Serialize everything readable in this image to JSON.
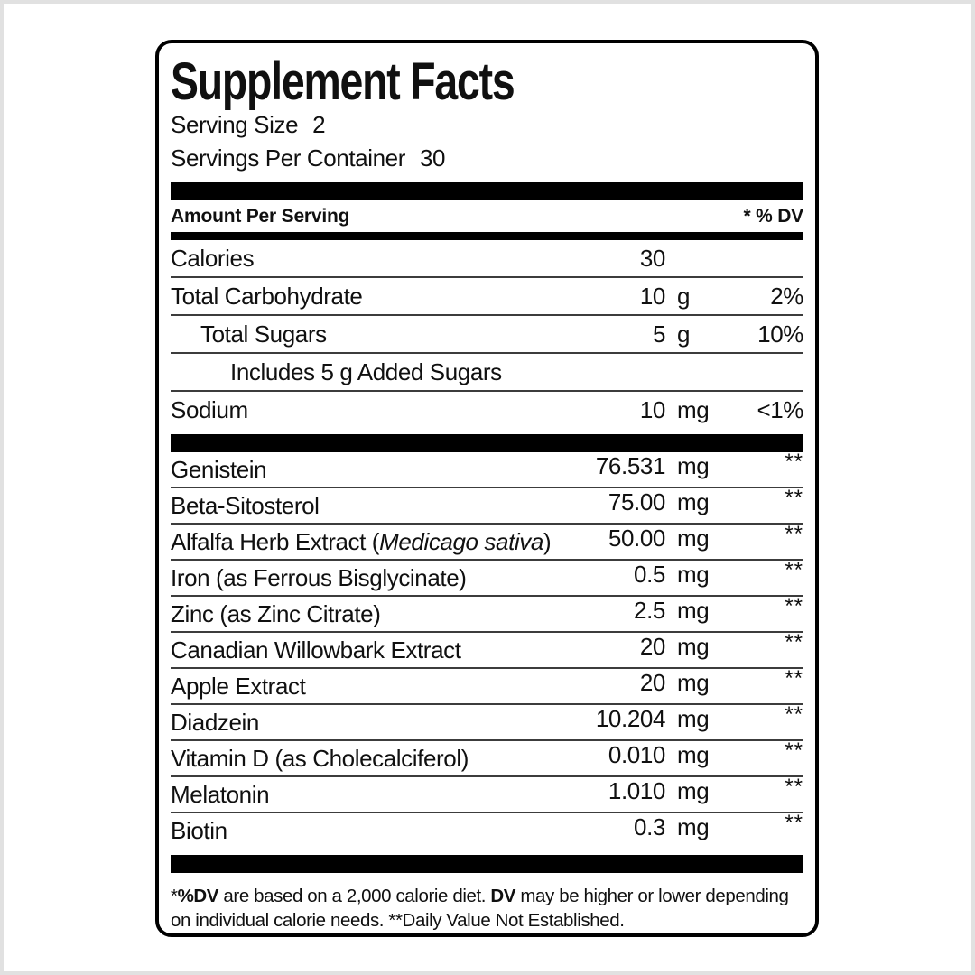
{
  "label": {
    "title": "Supplement Facts",
    "serving_size_label": "Serving Size",
    "serving_size_value": "2",
    "servings_per_container_label": "Servings Per Container",
    "servings_per_container_value": "30",
    "header": {
      "amount_per_serving": "Amount Per Serving",
      "dv": "* % DV"
    },
    "main_rows": [
      {
        "name": "Calories",
        "amount": "30",
        "unit": "",
        "dv": ""
      },
      {
        "name": "Total Carbohydrate",
        "amount": "10",
        "unit": "g",
        "dv": "2%"
      },
      {
        "name": "Total Sugars",
        "amount": "5",
        "unit": "g",
        "dv": "10%"
      },
      {
        "name": "Includes 5 g Added Sugars",
        "amount": "",
        "unit": "",
        "dv": ""
      },
      {
        "name": "Sodium",
        "amount": "10",
        "unit": "mg",
        "dv": "<1%"
      }
    ],
    "ingredient_rows": [
      {
        "name": "Genistein",
        "amount": "76.531",
        "unit": "mg",
        "dv": "**"
      },
      {
        "name": "Beta-Sitosterol",
        "amount": "75.00",
        "unit": "mg",
        "dv": "**"
      },
      {
        "name": "Alfalfa Herb Extract (",
        "name_italic": "Medicago sativa",
        "name_after": ")",
        "amount": "50.00",
        "unit": "mg",
        "dv": "**"
      },
      {
        "name": "Iron (as Ferrous Bisglycinate)",
        "amount": "0.5",
        "unit": "mg",
        "dv": "**"
      },
      {
        "name": "Zinc (as Zinc Citrate)",
        "amount": "2.5",
        "unit": "mg",
        "dv": "**"
      },
      {
        "name": "Canadian Willowbark Extract",
        "amount": "20",
        "unit": "mg",
        "dv": "**"
      },
      {
        "name": "Apple Extract",
        "amount": "20",
        "unit": "mg",
        "dv": "**"
      },
      {
        "name": "Diadzein",
        "amount": "10.204",
        "unit": "mg",
        "dv": "**"
      },
      {
        "name": "Vitamin D (as Cholecalciferol)",
        "amount": "0.010",
        "unit": "mg",
        "dv": "**"
      },
      {
        "name": "Melatonin",
        "amount": "1.010",
        "unit": "mg",
        "dv": "**"
      },
      {
        "name": "Biotin",
        "amount": "0.3",
        "unit": "mg",
        "dv": "**"
      }
    ],
    "footnote": {
      "seg1": "*",
      "seg2": "%DV",
      "seg3": " are based on a 2,000 calorie diet. ",
      "seg4": "DV",
      "seg5": " may be higher or lower depending on individual calorie needs. ",
      "seg6": "**Daily Value Not Established."
    },
    "colors": {
      "text": "#101010",
      "divider_bar": "#000000",
      "row_rule": "#3c3c3c",
      "page_frame": "#e1e1e1"
    }
  }
}
